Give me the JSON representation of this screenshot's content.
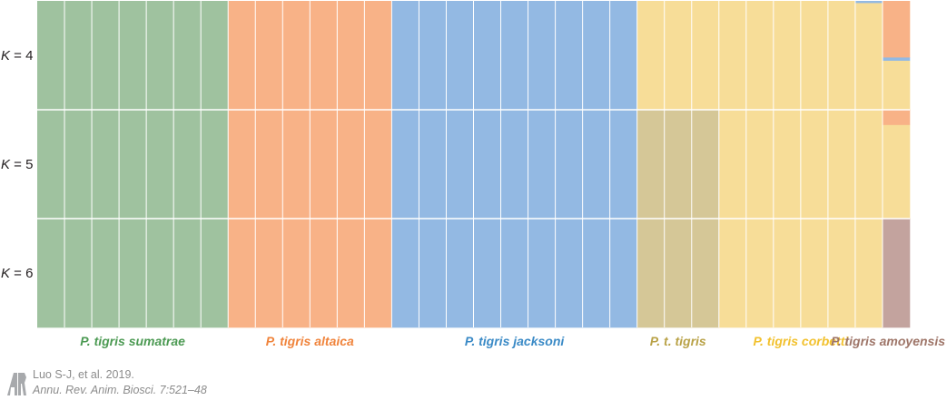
{
  "chart_data": {
    "type": "stacked-bar",
    "title": "",
    "rows": [
      "4",
      "5",
      "6"
    ],
    "row_label_prefix": "K",
    "clusters": [
      {
        "id": "sumatrae",
        "color": "#9fc29f"
      },
      {
        "id": "altaica",
        "color": "#f8b287"
      },
      {
        "id": "jacksoni",
        "color": "#93b9e3"
      },
      {
        "id": "corbetti",
        "color": "#f7dd98"
      },
      {
        "id": "tigris",
        "color": "#d5c797"
      },
      {
        "id": "amoyensis",
        "color": "#c3a39e"
      }
    ],
    "groups": [
      {
        "label": "P. tigris sumatrae",
        "color": "#4c9a53",
        "samples": 7
      },
      {
        "label": "P. tigris altaica",
        "color": "#f0843c",
        "samples": 6
      },
      {
        "label": "P. tigris jacksoni",
        "color": "#3a8ac6",
        "samples": 9
      },
      {
        "label": "P. t. tigris",
        "color": "#b9a247",
        "samples": 3
      },
      {
        "label": "P. tigris corbetti",
        "color": "#f2c12e",
        "samples": 6
      },
      {
        "label": "P. tigris amoyensis",
        "color": "#9e7568",
        "samples": 1
      }
    ],
    "memberships": {
      "4": [
        {
          "from": 0,
          "to": 6,
          "q": {
            "sumatrae": 1
          }
        },
        {
          "from": 7,
          "to": 12,
          "q": {
            "altaica": 1
          }
        },
        {
          "from": 13,
          "to": 21,
          "q": {
            "jacksoni": 1
          }
        },
        {
          "from": 22,
          "to": 29,
          "q": {
            "corbetti": 1
          }
        },
        {
          "from": 30,
          "to": 30,
          "q": {
            "corbetti": 0.98,
            "jacksoni": 0.02
          }
        },
        {
          "from": 31,
          "to": 31,
          "q": {
            "corbetti": 0.45,
            "jacksoni": 0.03,
            "altaica": 0.52
          }
        }
      ],
      "5": [
        {
          "from": 0,
          "to": 6,
          "q": {
            "sumatrae": 1
          }
        },
        {
          "from": 7,
          "to": 12,
          "q": {
            "altaica": 1
          }
        },
        {
          "from": 13,
          "to": 21,
          "q": {
            "jacksoni": 1
          }
        },
        {
          "from": 22,
          "to": 24,
          "q": {
            "tigris": 1
          }
        },
        {
          "from": 25,
          "to": 30,
          "q": {
            "corbetti": 1
          }
        },
        {
          "from": 31,
          "to": 31,
          "q": {
            "corbetti": 0.86,
            "altaica": 0.14
          }
        }
      ],
      "6": [
        {
          "from": 0,
          "to": 6,
          "q": {
            "sumatrae": 1
          }
        },
        {
          "from": 7,
          "to": 12,
          "q": {
            "altaica": 1
          }
        },
        {
          "from": 13,
          "to": 21,
          "q": {
            "jacksoni": 1
          }
        },
        {
          "from": 22,
          "to": 24,
          "q": {
            "tigris": 1
          }
        },
        {
          "from": 25,
          "to": 30,
          "q": {
            "corbetti": 1
          }
        },
        {
          "from": 31,
          "to": 31,
          "q": {
            "amoyensis": 1
          }
        }
      ]
    }
  },
  "citation": {
    "logo_letters": "AR",
    "line1": "Luo S-J, et al. 2019.",
    "line2": "Annu. Rev. Anim. Biosci. 7:521–48"
  }
}
